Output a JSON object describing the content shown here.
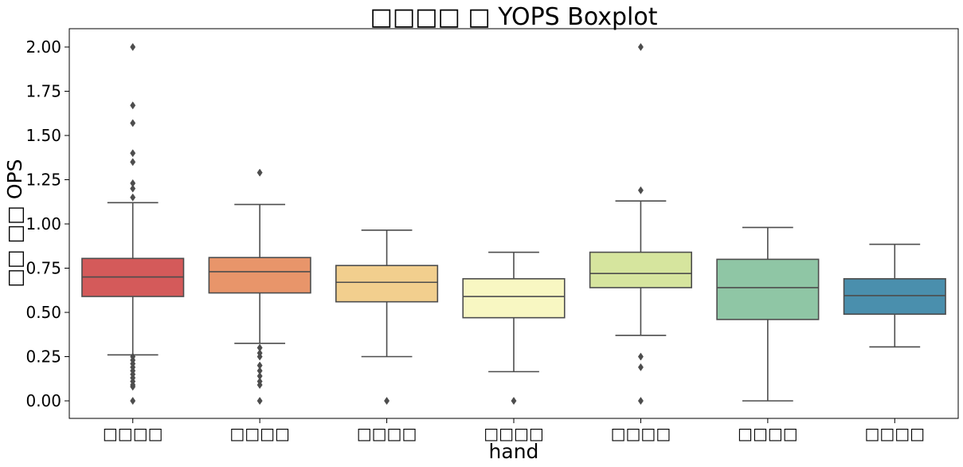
{
  "chart_data": {
    "type": "boxplot",
    "title": "□□□□ □ YOPS Boxplot",
    "xlabel": "hand",
    "ylabel": "□□ □□ OPS",
    "ylim": [
      -0.1,
      2.1
    ],
    "yticks": [
      0.0,
      0.25,
      0.5,
      0.75,
      1.0,
      1.25,
      1.5,
      1.75,
      2.0
    ],
    "ytick_labels": [
      "0.00",
      "0.25",
      "0.50",
      "0.75",
      "1.00",
      "1.25",
      "1.50",
      "1.75",
      "2.00"
    ],
    "categories": [
      "□□□□",
      "□□□□",
      "□□□□",
      "□□□□",
      "□□□□",
      "□□□□",
      "□□□□"
    ],
    "colors": [
      "#d45a5a",
      "#e8956a",
      "#f2cf8e",
      "#f8f7c2",
      "#d6e59e",
      "#8fc6a5",
      "#4a8fad"
    ],
    "edge_color": "#4d4d4d",
    "grid": false,
    "legend": "none",
    "boxes": [
      {
        "whisker_low": 0.26,
        "q1": 0.59,
        "median": 0.7,
        "q3": 0.805,
        "whisker_high": 1.12,
        "outliers": [
          2.0,
          1.67,
          1.57,
          1.4,
          1.35,
          1.23,
          1.2,
          1.15,
          0.25,
          0.23,
          0.21,
          0.19,
          0.17,
          0.15,
          0.13,
          0.11,
          0.09,
          0.08,
          0.0
        ]
      },
      {
        "whisker_low": 0.325,
        "q1": 0.61,
        "median": 0.73,
        "q3": 0.81,
        "whisker_high": 1.11,
        "outliers": [
          1.29,
          0.3,
          0.27,
          0.25,
          0.2,
          0.17,
          0.14,
          0.11,
          0.09,
          0.0
        ]
      },
      {
        "whisker_low": 0.25,
        "q1": 0.56,
        "median": 0.67,
        "q3": 0.765,
        "whisker_high": 0.965,
        "outliers": [
          0.0
        ]
      },
      {
        "whisker_low": 0.165,
        "q1": 0.47,
        "median": 0.59,
        "q3": 0.69,
        "whisker_high": 0.84,
        "outliers": [
          0.0
        ]
      },
      {
        "whisker_low": 0.37,
        "q1": 0.64,
        "median": 0.72,
        "q3": 0.84,
        "whisker_high": 1.13,
        "outliers": [
          2.0,
          1.19,
          0.25,
          0.19,
          0.0
        ]
      },
      {
        "whisker_low": 0.0,
        "q1": 0.46,
        "median": 0.64,
        "q3": 0.8,
        "whisker_high": 0.98,
        "outliers": []
      },
      {
        "whisker_low": 0.305,
        "q1": 0.49,
        "median": 0.595,
        "q3": 0.69,
        "whisker_high": 0.885,
        "outliers": []
      }
    ]
  }
}
